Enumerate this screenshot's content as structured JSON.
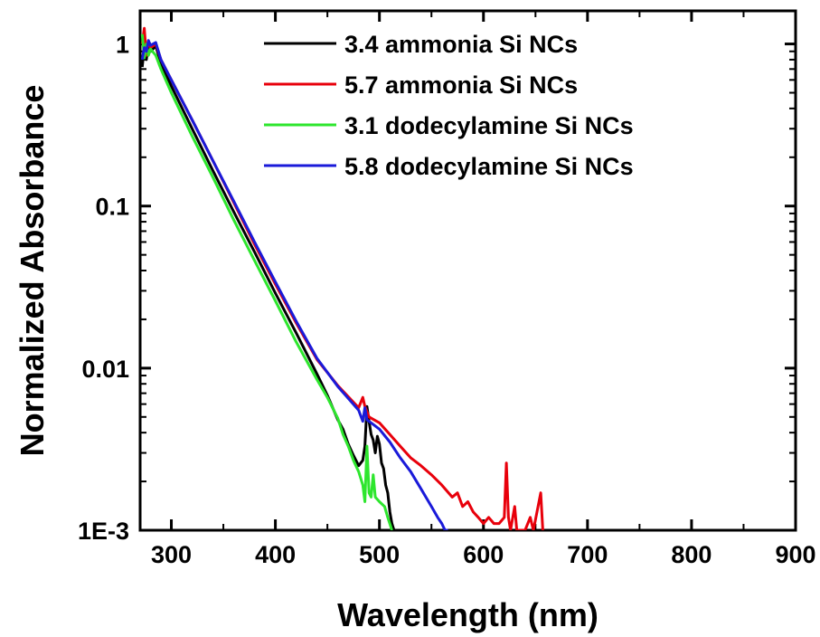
{
  "chart_data": {
    "type": "line",
    "xlabel": "Wavelength (nm)",
    "ylabel": "Normalized Absorbance",
    "xlim": [
      270,
      900
    ],
    "ylim": [
      0.001,
      1.6
    ],
    "yscale": "log",
    "x_ticks": [
      300,
      400,
      500,
      600,
      700,
      800,
      900
    ],
    "x_tick_labels": [
      "300",
      "400",
      "500",
      "600",
      "700",
      "800",
      "900"
    ],
    "y_ticks": [
      0.001,
      0.01,
      0.1,
      1
    ],
    "y_tick_labels": [
      "1E-3",
      "0.01",
      "0.1",
      "1"
    ],
    "grid": false,
    "legend_position": "top-right",
    "series": [
      {
        "name": "3.4 ammonia Si NCs",
        "color": "#000000",
        "points": [
          [
            272,
            0.72
          ],
          [
            274,
            0.95
          ],
          [
            276,
            0.8
          ],
          [
            278,
            1.0
          ],
          [
            280,
            0.9
          ],
          [
            285,
            0.97
          ],
          [
            290,
            0.76
          ],
          [
            300,
            0.55
          ],
          [
            320,
            0.3
          ],
          [
            340,
            0.165
          ],
          [
            360,
            0.092
          ],
          [
            380,
            0.052
          ],
          [
            400,
            0.029
          ],
          [
            420,
            0.0165
          ],
          [
            440,
            0.0092
          ],
          [
            450,
            0.0068
          ],
          [
            460,
            0.0048
          ],
          [
            465,
            0.0042
          ],
          [
            470,
            0.0034
          ],
          [
            475,
            0.0029
          ],
          [
            480,
            0.0025
          ],
          [
            484,
            0.0027
          ],
          [
            486,
            0.0033
          ],
          [
            488,
            0.0058
          ],
          [
            490,
            0.0047
          ],
          [
            492,
            0.0039
          ],
          [
            494,
            0.0036
          ],
          [
            496,
            0.003
          ],
          [
            498,
            0.0038
          ],
          [
            500,
            0.0034
          ],
          [
            502,
            0.0026
          ],
          [
            504,
            0.0024
          ],
          [
            506,
            0.0019
          ],
          [
            508,
            0.0017
          ],
          [
            510,
            0.0013
          ],
          [
            512,
            0.0011
          ],
          [
            514,
            0.001
          ]
        ]
      },
      {
        "name": "5.7 ammonia Si NCs",
        "color": "#e8000b",
        "points": [
          [
            272,
            1.0
          ],
          [
            274,
            1.25
          ],
          [
            276,
            0.85
          ],
          [
            278,
            1.05
          ],
          [
            280,
            0.95
          ],
          [
            285,
            1.0
          ],
          [
            290,
            0.8
          ],
          [
            300,
            0.6
          ],
          [
            320,
            0.34
          ],
          [
            340,
            0.19
          ],
          [
            360,
            0.105
          ],
          [
            380,
            0.058
          ],
          [
            400,
            0.033
          ],
          [
            420,
            0.019
          ],
          [
            440,
            0.0113
          ],
          [
            460,
            0.0078
          ],
          [
            480,
            0.0057
          ],
          [
            484,
            0.0066
          ],
          [
            486,
            0.0058
          ],
          [
            490,
            0.005
          ],
          [
            500,
            0.0046
          ],
          [
            510,
            0.0039
          ],
          [
            520,
            0.0033
          ],
          [
            530,
            0.0028
          ],
          [
            540,
            0.0025
          ],
          [
            550,
            0.0022
          ],
          [
            560,
            0.0019
          ],
          [
            570,
            0.0016
          ],
          [
            575,
            0.0017
          ],
          [
            580,
            0.0014
          ],
          [
            585,
            0.0015
          ],
          [
            590,
            0.0013
          ],
          [
            595,
            0.0012
          ],
          [
            600,
            0.0011
          ],
          [
            605,
            0.0012
          ],
          [
            610,
            0.0011
          ],
          [
            615,
            0.0011
          ],
          [
            620,
            0.0012
          ],
          [
            622,
            0.0026
          ],
          [
            624,
            0.0012
          ],
          [
            626,
            0.001
          ],
          [
            630,
            0.0014
          ],
          [
            632,
            0.001
          ],
          [
            640,
            0.001
          ],
          [
            645,
            0.0012
          ],
          [
            648,
            0.001
          ],
          [
            655,
            0.0017
          ],
          [
            657,
            0.001
          ]
        ]
      },
      {
        "name": "3.1 dodecylamine Si NCs",
        "color": "#2ee62e",
        "points": [
          [
            272,
            1.15
          ],
          [
            274,
            0.82
          ],
          [
            276,
            1.0
          ],
          [
            278,
            0.85
          ],
          [
            280,
            0.93
          ],
          [
            285,
            0.85
          ],
          [
            290,
            0.7
          ],
          [
            300,
            0.5
          ],
          [
            320,
            0.27
          ],
          [
            340,
            0.15
          ],
          [
            360,
            0.082
          ],
          [
            380,
            0.046
          ],
          [
            400,
            0.026
          ],
          [
            420,
            0.0145
          ],
          [
            440,
            0.0085
          ],
          [
            450,
            0.0066
          ],
          [
            460,
            0.0049
          ],
          [
            465,
            0.0039
          ],
          [
            470,
            0.0033
          ],
          [
            475,
            0.0027
          ],
          [
            480,
            0.0023
          ],
          [
            484,
            0.0019
          ],
          [
            486,
            0.0015
          ],
          [
            488,
            0.0033
          ],
          [
            490,
            0.0017
          ],
          [
            492,
            0.0016
          ],
          [
            494,
            0.0022
          ],
          [
            496,
            0.0016
          ],
          [
            500,
            0.0015
          ],
          [
            505,
            0.0014
          ],
          [
            508,
            0.0012
          ],
          [
            512,
            0.001
          ]
        ]
      },
      {
        "name": "5.8 dodecylamine Si NCs",
        "color": "#1a1ad9",
        "points": [
          [
            272,
            0.8
          ],
          [
            274,
            0.95
          ],
          [
            276,
            0.9
          ],
          [
            278,
            1.05
          ],
          [
            280,
            0.98
          ],
          [
            285,
            1.02
          ],
          [
            290,
            0.8
          ],
          [
            300,
            0.6
          ],
          [
            320,
            0.34
          ],
          [
            340,
            0.19
          ],
          [
            360,
            0.107
          ],
          [
            380,
            0.06
          ],
          [
            400,
            0.034
          ],
          [
            420,
            0.0195
          ],
          [
            440,
            0.0115
          ],
          [
            460,
            0.0077
          ],
          [
            480,
            0.0055
          ],
          [
            484,
            0.0047
          ],
          [
            486,
            0.0057
          ],
          [
            488,
            0.0048
          ],
          [
            492,
            0.0046
          ],
          [
            500,
            0.0042
          ],
          [
            510,
            0.0035
          ],
          [
            520,
            0.0028
          ],
          [
            530,
            0.0023
          ],
          [
            540,
            0.0018
          ],
          [
            550,
            0.0014
          ],
          [
            556,
            0.0012
          ],
          [
            560,
            0.0011
          ],
          [
            563,
            0.001
          ],
          [
            566,
            0.001
          ]
        ]
      }
    ]
  }
}
